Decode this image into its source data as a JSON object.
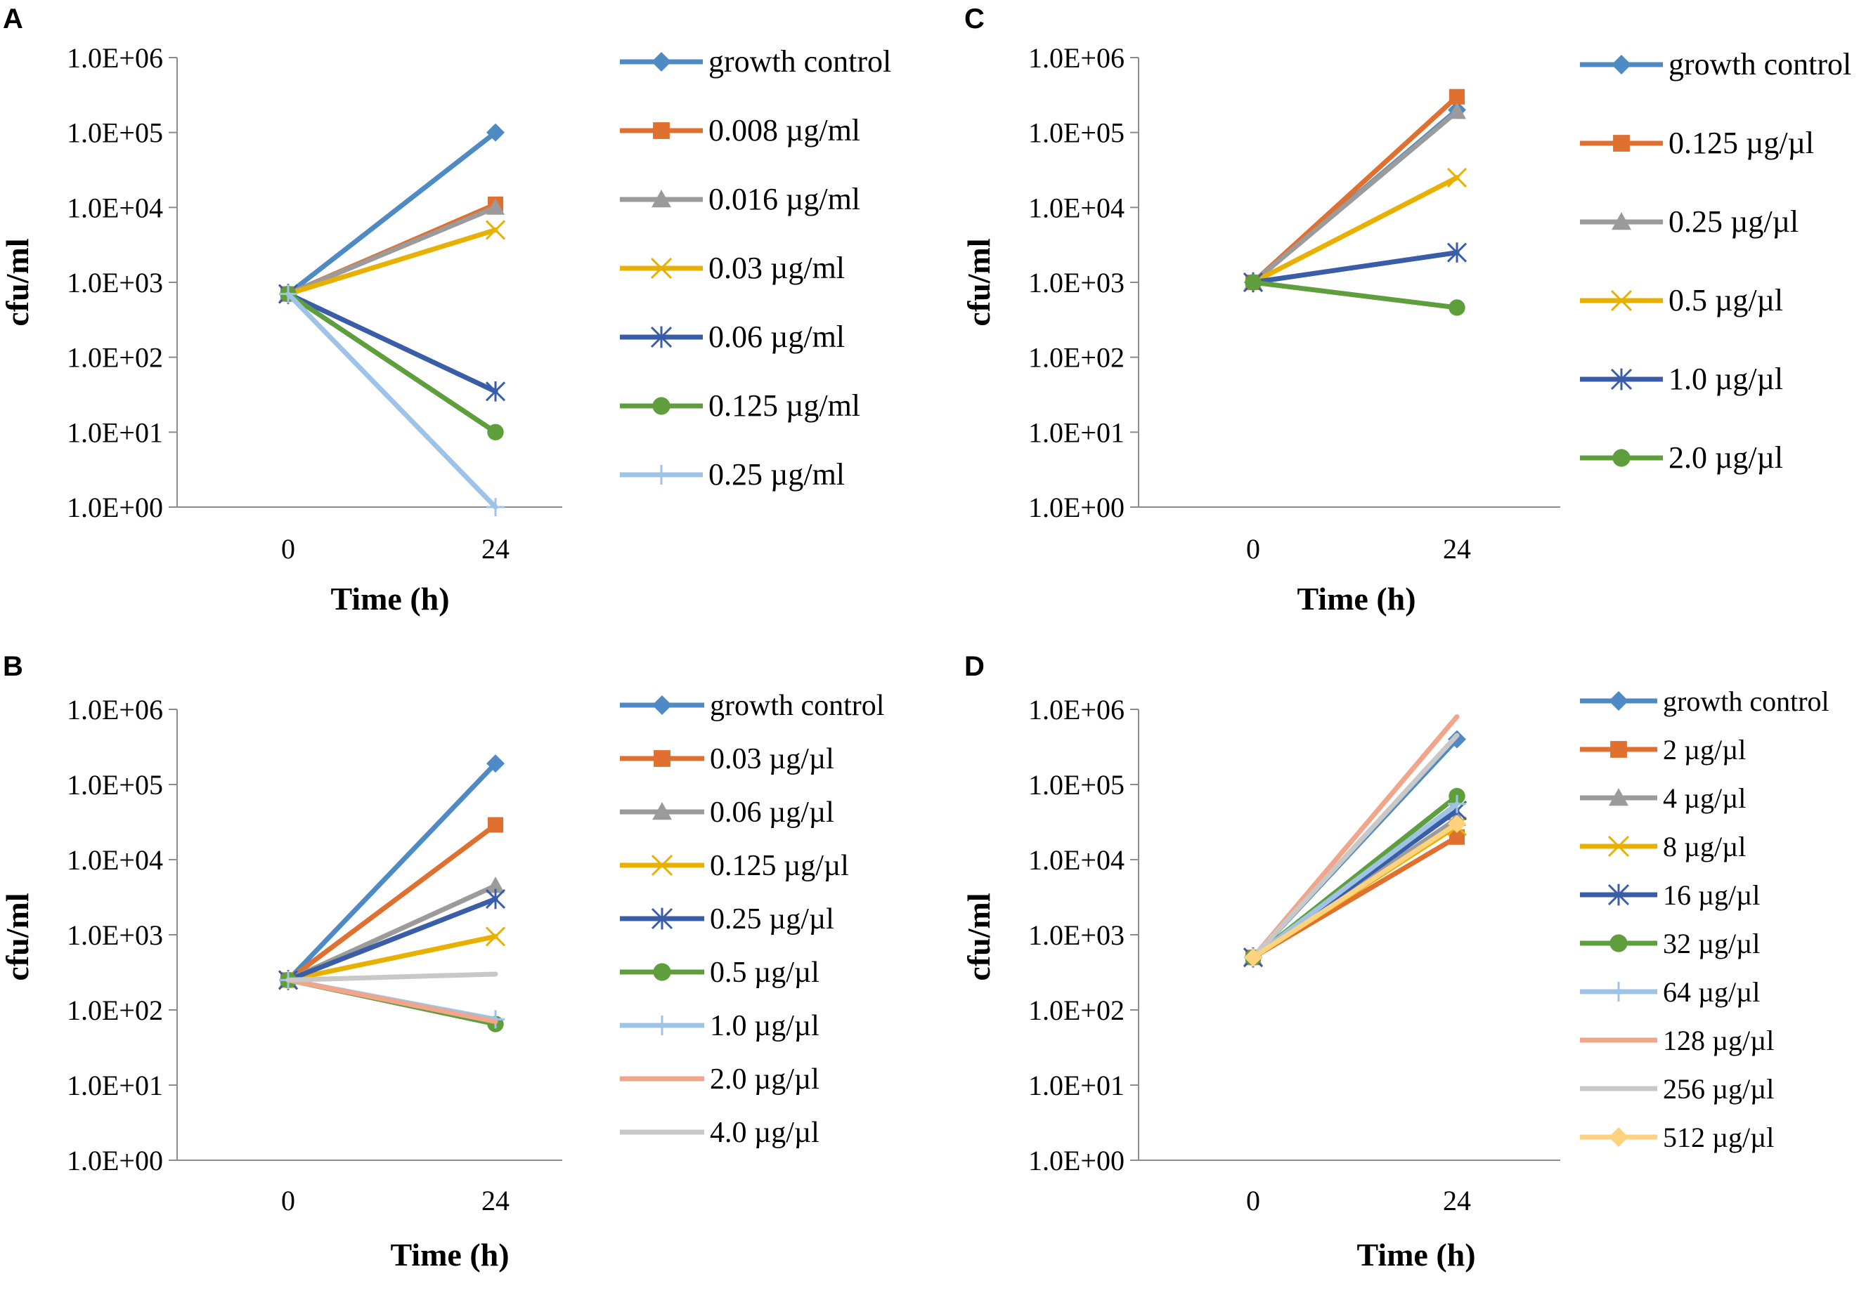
{
  "chart_data": [
    {
      "panel": "A",
      "type": "line",
      "yscale": "log",
      "ylim": [
        1,
        1000000
      ],
      "yticks": [
        "1.0E+00",
        "1.0E+01",
        "1.0E+02",
        "1.0E+03",
        "1.0E+04",
        "1.0E+05",
        "1.0E+06"
      ],
      "categories": [
        "0",
        "24"
      ],
      "xlabel": "Time (h)",
      "ylabel": "cfu/ml",
      "legend_position": "right",
      "series": [
        {
          "name": "growth control",
          "values": [
            700,
            100000
          ],
          "color": "#4E8AC3",
          "marker": "diamond"
        },
        {
          "name": "0.008 µg/ml",
          "values": [
            700,
            11000
          ],
          "color": "#E0702F",
          "marker": "square"
        },
        {
          "name": "0.016 µg/ml",
          "values": [
            700,
            10000
          ],
          "color": "#9B9B9B",
          "marker": "triangle"
        },
        {
          "name": "0.03 µg/ml",
          "values": [
            700,
            5000
          ],
          "color": "#E8B000",
          "marker": "x"
        },
        {
          "name": "0.06 µg/ml",
          "values": [
            700,
            35
          ],
          "color": "#3A5DA8",
          "marker": "star"
        },
        {
          "name": "0.125 µg/ml",
          "values": [
            700,
            10
          ],
          "color": "#5E9E3C",
          "marker": "circle"
        },
        {
          "name": "0.25 µg/ml",
          "values": [
            700,
            1
          ],
          "color": "#9FC3E6",
          "marker": "plus"
        }
      ]
    },
    {
      "panel": "B",
      "type": "line",
      "yscale": "log",
      "ylim": [
        1,
        1000000
      ],
      "yticks": [
        "1.0E+00",
        "1.0E+01",
        "1.0E+02",
        "1.0E+03",
        "1.0E+04",
        "1.0E+05",
        "1.0E+06"
      ],
      "categories": [
        "0",
        "24"
      ],
      "xlabel": "Time (h)",
      "ylabel": "cfu/ml",
      "legend_position": "right",
      "series": [
        {
          "name": "growth control",
          "values": [
            250,
            190000
          ],
          "color": "#4E8AC3",
          "marker": "diamond"
        },
        {
          "name": "0.03 µg/µl",
          "values": [
            250,
            29000
          ],
          "color": "#E0702F",
          "marker": "square"
        },
        {
          "name": "0.06 µg/µl",
          "values": [
            250,
            4500
          ],
          "color": "#9B9B9B",
          "marker": "triangle"
        },
        {
          "name": "0.125 µg/µl",
          "values": [
            250,
            950
          ],
          "color": "#E8B000",
          "marker": "x"
        },
        {
          "name": "0.25 µg/µl",
          "values": [
            250,
            3000
          ],
          "color": "#3A5DA8",
          "marker": "star"
        },
        {
          "name": "0.5 µg/µl",
          "values": [
            250,
            65
          ],
          "color": "#5E9E3C",
          "marker": "circle"
        },
        {
          "name": "1.0 µg/µl",
          "values": [
            250,
            75
          ],
          "color": "#9FC3E6",
          "marker": "plus"
        },
        {
          "name": "2.0 µg/µl",
          "values": [
            250,
            70
          ],
          "color": "#F1A58A",
          "marker": "none"
        },
        {
          "name": "4.0 µg/µl",
          "values": [
            250,
            300
          ],
          "color": "#C8C8C8",
          "marker": "none"
        }
      ]
    },
    {
      "panel": "C",
      "type": "line",
      "yscale": "log",
      "ylim": [
        1,
        1000000
      ],
      "yticks": [
        "1.0E+00",
        "1.0E+01",
        "1.0E+02",
        "1.0E+03",
        "1.0E+04",
        "1.0E+05",
        "1.0E+06"
      ],
      "categories": [
        "0",
        "24"
      ],
      "xlabel": "Time (h)",
      "ylabel": "cfu/ml",
      "legend_position": "right",
      "series": [
        {
          "name": "growth control",
          "values": [
            1000,
            200000
          ],
          "color": "#4E8AC3",
          "marker": "diamond"
        },
        {
          "name": "0.125 µg/µl",
          "values": [
            1000,
            300000
          ],
          "color": "#E0702F",
          "marker": "square"
        },
        {
          "name": "0.25 µg/µl",
          "values": [
            1000,
            190000
          ],
          "color": "#9B9B9B",
          "marker": "triangle"
        },
        {
          "name": "0.5 µg/µl",
          "values": [
            1000,
            25000
          ],
          "color": "#E8B000",
          "marker": "x"
        },
        {
          "name": "1.0 µg/µl",
          "values": [
            1000,
            2500
          ],
          "color": "#3A5DA8",
          "marker": "star"
        },
        {
          "name": "2.0 µg/µl",
          "values": [
            1000,
            460
          ],
          "color": "#5E9E3C",
          "marker": "circle"
        }
      ]
    },
    {
      "panel": "D",
      "type": "line",
      "yscale": "log",
      "ylim": [
        1,
        1000000
      ],
      "yticks": [
        "1.0E+00",
        "1.0E+01",
        "1.0E+02",
        "1.0E+03",
        "1.0E+04",
        "1.0E+05",
        "1.0E+06"
      ],
      "categories": [
        "0",
        "24"
      ],
      "xlabel": "Time (h)",
      "ylabel": "cfu/ml",
      "legend_position": "right",
      "series": [
        {
          "name": "growth control",
          "values": [
            500,
            400000
          ],
          "color": "#4E8AC3",
          "marker": "diamond"
        },
        {
          "name": "2 µg/µl",
          "values": [
            500,
            20000
          ],
          "color": "#E0702F",
          "marker": "square"
        },
        {
          "name": "4 µg/µl",
          "values": [
            500,
            35000
          ],
          "color": "#9B9B9B",
          "marker": "triangle"
        },
        {
          "name": "8 µg/µl",
          "values": [
            500,
            28000
          ],
          "color": "#E8B000",
          "marker": "x"
        },
        {
          "name": "16 µg/µl",
          "values": [
            500,
            45000
          ],
          "color": "#3A5DA8",
          "marker": "star"
        },
        {
          "name": "32 µg/µl",
          "values": [
            500,
            70000
          ],
          "color": "#5E9E3C",
          "marker": "circle"
        },
        {
          "name": "64 µg/µl",
          "values": [
            500,
            55000
          ],
          "color": "#9FC3E6",
          "marker": "plus"
        },
        {
          "name": "128 µg/µl",
          "values": [
            500,
            800000
          ],
          "color": "#F1A58A",
          "marker": "none"
        },
        {
          "name": "256 µg/µl",
          "values": [
            500,
            450000
          ],
          "color": "#C8C8C8",
          "marker": "none"
        },
        {
          "name": "512 µg/µl",
          "values": [
            500,
            30000
          ],
          "color": "#FFD27F",
          "marker": "diamond"
        }
      ]
    }
  ]
}
